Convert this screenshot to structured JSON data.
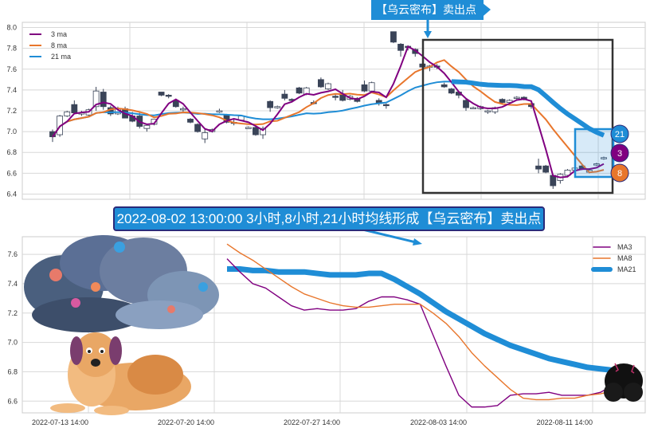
{
  "top_flag": "【乌云密布】卖出点",
  "banner": "2022-08-02 13:00:00 3小时,8小时,21小时均线形成【乌云密布】卖出点",
  "badges": {
    "ma21": "21",
    "ma3": "3",
    "ma8": "8"
  },
  "colors": {
    "ma3": "#800080",
    "ma8": "#e8762c",
    "ma21": "#1f8dd6",
    "candle_down": "#3a4458",
    "box": "#333333"
  },
  "chart_data": [
    {
      "type": "candlestick",
      "ylim": [
        6.35,
        8.05
      ],
      "yticks": [
        "6.4",
        "6.6",
        "6.8",
        "7.0",
        "7.2",
        "7.4",
        "7.6",
        "7.8",
        "8.0"
      ],
      "grid": true,
      "legend": {
        "placement": "top-left",
        "entries": [
          "3 ma",
          "8 ma",
          "21 ma"
        ]
      },
      "ohlc": [
        [
          7.0,
          7.02,
          6.9,
          6.95
        ],
        [
          6.97,
          7.16,
          6.95,
          7.15
        ],
        [
          7.15,
          7.2,
          7.14,
          7.19
        ],
        [
          7.26,
          7.3,
          7.17,
          7.18
        ],
        [
          7.17,
          7.2,
          7.15,
          7.18
        ],
        [
          7.16,
          7.22,
          7.15,
          7.21
        ],
        [
          7.24,
          7.43,
          7.2,
          7.39
        ],
        [
          7.38,
          7.41,
          7.21,
          7.24
        ],
        [
          7.23,
          7.25,
          7.15,
          7.17
        ],
        [
          7.17,
          7.24,
          7.16,
          7.22
        ],
        [
          7.22,
          7.24,
          7.13,
          7.13
        ],
        [
          7.15,
          7.19,
          7.09,
          7.1
        ],
        [
          7.15,
          7.18,
          7.03,
          7.05
        ],
        [
          7.03,
          7.06,
          7.0,
          7.06
        ],
        [
          7.07,
          7.12,
          7.06,
          7.12
        ],
        [
          7.38,
          7.38,
          7.34,
          7.35
        ],
        [
          7.35,
          7.36,
          7.32,
          7.34
        ],
        [
          7.3,
          7.31,
          7.23,
          7.24
        ],
        [
          7.22,
          7.24,
          7.18,
          7.22
        ],
        [
          7.12,
          7.13,
          7.08,
          7.09
        ],
        [
          7.07,
          7.08,
          6.99,
          7.0
        ],
        [
          6.93,
          7.02,
          6.89,
          6.99
        ],
        [
          7.0,
          7.03,
          6.99,
          7.02
        ],
        [
          7.19,
          7.22,
          7.18,
          7.2
        ],
        [
          7.16,
          7.17,
          7.08,
          7.09
        ],
        [
          7.09,
          7.12,
          7.06,
          7.08
        ],
        [
          7.11,
          7.16,
          7.1,
          7.15
        ],
        [
          7.04,
          7.05,
          7.03,
          7.04
        ],
        [
          7.04,
          7.06,
          6.96,
          6.97
        ],
        [
          6.97,
          7.05,
          6.93,
          7.03
        ],
        [
          7.29,
          7.3,
          7.19,
          7.23
        ],
        [
          7.23,
          7.25,
          7.22,
          7.24
        ],
        [
          7.36,
          7.4,
          7.3,
          7.32
        ],
        [
          7.31,
          7.32,
          7.29,
          7.3
        ],
        [
          7.42,
          7.43,
          7.36,
          7.37
        ],
        [
          7.36,
          7.43,
          7.35,
          7.42
        ],
        [
          7.28,
          7.3,
          7.26,
          7.27
        ],
        [
          7.5,
          7.52,
          7.42,
          7.43
        ],
        [
          7.41,
          7.47,
          7.4,
          7.46
        ],
        [
          7.34,
          7.36,
          7.3,
          7.33
        ],
        [
          7.36,
          7.4,
          7.29,
          7.3
        ],
        [
          7.31,
          7.35,
          7.3,
          7.34
        ],
        [
          7.32,
          7.33,
          7.28,
          7.29
        ],
        [
          7.45,
          7.49,
          7.38,
          7.39
        ],
        [
          7.39,
          7.48,
          7.38,
          7.47
        ],
        [
          7.3,
          7.32,
          7.25,
          7.27
        ],
        [
          7.26,
          7.27,
          7.22,
          7.25
        ],
        [
          7.96,
          7.96,
          7.85,
          7.86
        ],
        [
          7.84,
          7.85,
          7.72,
          7.78
        ],
        [
          7.82,
          7.83,
          7.78,
          7.81
        ],
        [
          7.79,
          7.8,
          7.72,
          7.75
        ],
        [
          7.65,
          7.66,
          7.6,
          7.62
        ],
        [
          7.62,
          7.64,
          7.58,
          7.63
        ],
        [
          7.63,
          7.65,
          7.6,
          7.62
        ],
        [
          7.45,
          7.47,
          7.42,
          7.43
        ],
        [
          7.41,
          7.42,
          7.36,
          7.37
        ],
        [
          7.38,
          7.39,
          7.32,
          7.35
        ],
        [
          7.3,
          7.31,
          7.2,
          7.23
        ],
        [
          7.23,
          7.24,
          7.22,
          7.23
        ],
        [
          7.22,
          7.25,
          7.21,
          7.24
        ],
        [
          7.2,
          7.21,
          7.17,
          7.2
        ],
        [
          7.19,
          7.24,
          7.17,
          7.23
        ],
        [
          7.31,
          7.32,
          7.26,
          7.28
        ],
        [
          7.28,
          7.31,
          7.27,
          7.3
        ],
        [
          7.32,
          7.34,
          7.31,
          7.33
        ],
        [
          7.33,
          7.34,
          7.3,
          7.31
        ],
        [
          7.27,
          7.29,
          7.22,
          7.24
        ],
        [
          6.67,
          6.74,
          6.6,
          6.64
        ],
        [
          6.67,
          6.68,
          6.6,
          6.61
        ],
        [
          6.58,
          6.59,
          6.45,
          6.48
        ],
        [
          6.53,
          6.6,
          6.5,
          6.59
        ],
        [
          6.58,
          6.64,
          6.56,
          6.63
        ],
        [
          6.63,
          6.66,
          6.62,
          6.65
        ],
        [
          6.67,
          6.68,
          6.63,
          6.64
        ],
        [
          6.61,
          6.64,
          6.6,
          6.63
        ],
        [
          6.68,
          6.7,
          6.67,
          6.69
        ],
        [
          6.74,
          6.76,
          6.73,
          6.75
        ]
      ],
      "ma_windows": [
        3,
        8,
        21
      ]
    },
    {
      "type": "line",
      "ylim": [
        6.52,
        7.72
      ],
      "yticks": [
        "6.6",
        "6.8",
        "7.0",
        "7.2",
        "7.4",
        "7.6"
      ],
      "xticks": [
        "2022-07-13 14:00",
        "2022-07-20 14:00",
        "2022-07-27 14:00",
        "2022-08-03 14:00",
        "2022-08-11 14:00"
      ],
      "grid": true,
      "legend": {
        "placement": "top-right",
        "entries": [
          "MA3",
          "MA8",
          "MA21"
        ]
      },
      "series": [
        {
          "name": "MA3",
          "values": [
            7.57,
            7.48,
            7.4,
            7.37,
            7.31,
            7.25,
            7.22,
            7.23,
            7.22,
            7.22,
            7.23,
            7.28,
            7.31,
            7.31,
            7.29,
            7.26,
            7.05,
            6.84,
            6.64,
            6.56,
            6.56,
            6.57,
            6.64,
            6.65,
            6.65,
            6.66,
            6.64,
            6.64,
            6.64,
            6.66,
            6.71
          ]
        },
        {
          "name": "MA8",
          "values": [
            7.67,
            7.61,
            7.56,
            7.5,
            7.44,
            7.38,
            7.33,
            7.3,
            7.27,
            7.25,
            7.24,
            7.24,
            7.25,
            7.26,
            7.26,
            7.26,
            7.2,
            7.13,
            7.04,
            6.93,
            6.84,
            6.76,
            6.68,
            6.62,
            6.61,
            6.61,
            6.62,
            6.62,
            6.64,
            6.65,
            6.67
          ]
        },
        {
          "name": "MA21",
          "values": [
            7.5,
            7.5,
            7.49,
            7.49,
            7.48,
            7.48,
            7.48,
            7.47,
            7.46,
            7.46,
            7.46,
            7.47,
            7.47,
            7.43,
            7.38,
            7.33,
            7.27,
            7.21,
            7.16,
            7.11,
            7.06,
            7.02,
            6.98,
            6.95,
            6.92,
            6.89,
            6.87,
            6.85,
            6.83,
            6.82,
            6.81
          ]
        }
      ]
    }
  ]
}
